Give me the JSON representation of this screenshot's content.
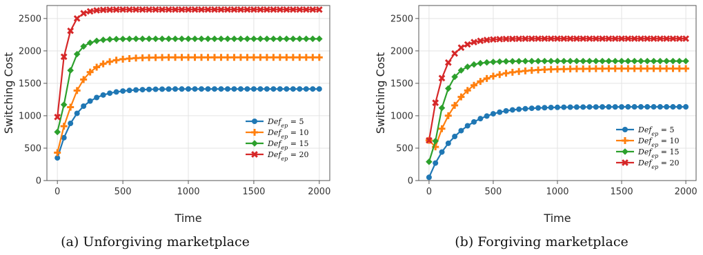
{
  "chart_data": [
    {
      "type": "line",
      "caption": "(a) Unforgiving marketplace",
      "xlabel": "Time",
      "ylabel": "Switching Cost",
      "xlim": [
        -80,
        2080
      ],
      "ylim": [
        0,
        2700
      ],
      "xticks": [
        0,
        500,
        1000,
        1500,
        2000
      ],
      "yticks": [
        0,
        500,
        1000,
        1500,
        2000,
        2500
      ],
      "grid": true,
      "legend_position": "lower-right",
      "x": [
        0,
        50,
        100,
        150,
        200,
        250,
        300,
        350,
        400,
        450,
        500,
        550,
        600,
        650,
        700,
        750,
        800,
        850,
        900,
        950,
        1000,
        1050,
        1100,
        1150,
        1200,
        1250,
        1300,
        1350,
        1400,
        1450,
        1500,
        1550,
        1600,
        1650,
        1700,
        1750,
        1800,
        1850,
        1900,
        1950,
        2000
      ],
      "series": [
        {
          "name": "Def_ep = 5",
          "label_main": "Def",
          "label_sub": "ep",
          "label_rest": " = 5",
          "color": "#1f77b4",
          "marker": "circle",
          "values": [
            350,
            661,
            882,
            1037,
            1148,
            1226,
            1281,
            1320,
            1348,
            1367,
            1381,
            1391,
            1398,
            1402,
            1406,
            1408,
            1410,
            1411,
            1412,
            1412,
            1413,
            1413,
            1413,
            1413,
            1413,
            1413,
            1413,
            1413,
            1413,
            1413,
            1413,
            1413,
            1413,
            1413,
            1413,
            1413,
            1413,
            1413,
            1413,
            1413,
            1413
          ]
        },
        {
          "name": "Def_ep = 10",
          "label_main": "Def",
          "label_sub": "ep",
          "label_rest": " = 10",
          "color": "#ff7f0e",
          "marker": "plus",
          "values": [
            430,
            838,
            1132,
            1388,
            1559,
            1673,
            1749,
            1800,
            1834,
            1857,
            1872,
            1882,
            1889,
            1893,
            1896,
            1898,
            1899,
            1900,
            1900,
            1900,
            1900,
            1900,
            1900,
            1900,
            1900,
            1900,
            1900,
            1900,
            1900,
            1900,
            1900,
            1900,
            1900,
            1900,
            1900,
            1900,
            1900,
            1900,
            1900,
            1900,
            1900
          ]
        },
        {
          "name": "Def_ep = 15",
          "label_main": "Def",
          "label_sub": "ep",
          "label_rest": " = 15",
          "color": "#2ca02c",
          "marker": "diamond",
          "values": [
            750,
            1170,
            1700,
            1950,
            2070,
            2125,
            2155,
            2170,
            2178,
            2182,
            2184,
            2185,
            2186,
            2186,
            2186,
            2186,
            2186,
            2186,
            2186,
            2186,
            2186,
            2186,
            2186,
            2186,
            2186,
            2186,
            2186,
            2186,
            2186,
            2186,
            2186,
            2186,
            2186,
            2186,
            2186,
            2186,
            2186,
            2186,
            2186,
            2186,
            2186
          ]
        },
        {
          "name": "Def_ep = 20",
          "label_main": "Def",
          "label_sub": "ep",
          "label_rest": " = 20",
          "color": "#d62728",
          "marker": "x",
          "values": [
            980,
            1910,
            2310,
            2500,
            2580,
            2610,
            2625,
            2632,
            2635,
            2636,
            2637,
            2637,
            2637,
            2637,
            2637,
            2637,
            2637,
            2637,
            2637,
            2637,
            2637,
            2637,
            2637,
            2637,
            2637,
            2637,
            2637,
            2637,
            2637,
            2637,
            2637,
            2637,
            2637,
            2637,
            2637,
            2637,
            2637,
            2637,
            2637,
            2637,
            2637
          ]
        }
      ]
    },
    {
      "type": "line",
      "caption": "(b) Forgiving marketplace",
      "xlabel": "Time",
      "ylabel": "Switching Cost",
      "xlim": [
        -80,
        2080
      ],
      "ylim": [
        0,
        2700
      ],
      "xticks": [
        0,
        500,
        1000,
        1500,
        2000
      ],
      "yticks": [
        0,
        500,
        1000,
        1500,
        2000,
        2500
      ],
      "grid": true,
      "legend_position": "lower-right",
      "x": [
        0,
        50,
        100,
        150,
        200,
        250,
        300,
        350,
        400,
        450,
        500,
        550,
        600,
        650,
        700,
        750,
        800,
        850,
        900,
        950,
        1000,
        1050,
        1100,
        1150,
        1200,
        1250,
        1300,
        1350,
        1400,
        1450,
        1500,
        1550,
        1600,
        1650,
        1700,
        1750,
        1800,
        1850,
        1900,
        1950,
        2000
      ],
      "series": [
        {
          "name": "Def_ep = 5",
          "label_main": "Def",
          "label_sub": "ep",
          "label_rest": " = 5",
          "color": "#1f77b4",
          "marker": "circle",
          "values": [
            50,
            270,
            440,
            575,
            680,
            770,
            845,
            905,
            955,
            995,
            1030,
            1055,
            1075,
            1090,
            1100,
            1108,
            1115,
            1120,
            1124,
            1127,
            1129,
            1131,
            1132,
            1133,
            1134,
            1135,
            1135,
            1136,
            1136,
            1136,
            1136,
            1137,
            1137,
            1137,
            1137,
            1137,
            1137,
            1137,
            1137,
            1137,
            1137
          ]
        },
        {
          "name": "Def_ep = 10",
          "label_main": "Def",
          "label_sub": "ep",
          "label_rest": " = 10",
          "color": "#ff7f0e",
          "marker": "plus",
          "values": [
            620,
            520,
            800,
            1000,
            1160,
            1290,
            1390,
            1470,
            1530,
            1575,
            1610,
            1635,
            1655,
            1670,
            1682,
            1692,
            1700,
            1706,
            1711,
            1715,
            1718,
            1720,
            1722,
            1723,
            1724,
            1725,
            1726,
            1726,
            1727,
            1727,
            1727,
            1727,
            1728,
            1728,
            1728,
            1728,
            1728,
            1728,
            1728,
            1728,
            1728
          ]
        },
        {
          "name": "Def_ep = 15",
          "label_main": "Def",
          "label_sub": "ep",
          "label_rest": " = 15",
          "color": "#2ca02c",
          "marker": "diamond",
          "values": [
            290,
            610,
            1120,
            1420,
            1600,
            1700,
            1755,
            1790,
            1810,
            1822,
            1830,
            1835,
            1838,
            1840,
            1841,
            1842,
            1842,
            1843,
            1843,
            1843,
            1843,
            1843,
            1843,
            1843,
            1843,
            1843,
            1843,
            1843,
            1843,
            1843,
            1843,
            1843,
            1843,
            1843,
            1843,
            1843,
            1843,
            1843,
            1843,
            1843,
            1843
          ]
        },
        {
          "name": "Def_ep = 20",
          "label_main": "Def",
          "label_sub": "ep",
          "label_rest": " = 20",
          "color": "#d62728",
          "marker": "x",
          "values": [
            620,
            1200,
            1580,
            1820,
            1960,
            2050,
            2100,
            2135,
            2155,
            2168,
            2176,
            2181,
            2184,
            2186,
            2187,
            2188,
            2188,
            2189,
            2189,
            2189,
            2189,
            2189,
            2189,
            2189,
            2189,
            2189,
            2189,
            2189,
            2189,
            2189,
            2189,
            2189,
            2189,
            2189,
            2189,
            2189,
            2189,
            2189,
            2189,
            2189,
            2189
          ]
        }
      ]
    }
  ]
}
